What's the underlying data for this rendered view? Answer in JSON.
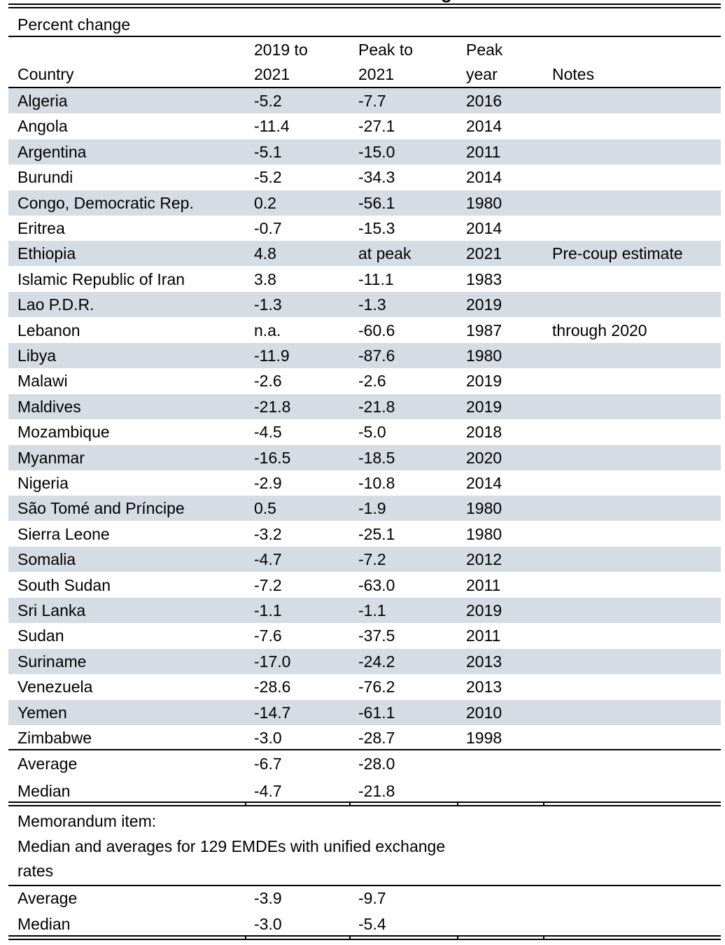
{
  "title_fragment": "g",
  "subtitle": "Percent change",
  "headers": {
    "country": "Country",
    "col1_line1": "2019 to",
    "col1_line2": "2021",
    "col2_line1": "Peak to",
    "col2_line2": "2021",
    "col3_line1": "Peak",
    "col3_line2": "year",
    "notes": "Notes"
  },
  "rows": [
    {
      "country": "Algeria",
      "v1": "-5.2",
      "v2": "-7.7",
      "year": "2016",
      "note": ""
    },
    {
      "country": "Angola",
      "v1": "-11.4",
      "v2": "-27.1",
      "year": "2014",
      "note": ""
    },
    {
      "country": "Argentina",
      "v1": "-5.1",
      "v2": "-15.0",
      "year": "2011",
      "note": ""
    },
    {
      "country": "Burundi",
      "v1": "-5.2",
      "v2": "-34.3",
      "year": "2014",
      "note": ""
    },
    {
      "country": "Congo, Democratic Rep.",
      "v1": "0.2",
      "v2": "-56.1",
      "year": "1980",
      "note": ""
    },
    {
      "country": "Eritrea",
      "v1": "-0.7",
      "v2": "-15.3",
      "year": "2014",
      "note": ""
    },
    {
      "country": "Ethiopia",
      "v1": "4.8",
      "v2": "at peak",
      "year": "2021",
      "note": "Pre-coup estimate"
    },
    {
      "country": "Islamic Republic of Iran",
      "v1": "3.8",
      "v2": "-11.1",
      "year": "1983",
      "note": ""
    },
    {
      "country": "Lao P.D.R.",
      "v1": "-1.3",
      "v2": "-1.3",
      "year": "2019",
      "note": ""
    },
    {
      "country": "Lebanon",
      "v1": "n.a.",
      "v2": "-60.6",
      "year": "1987",
      "note": "through 2020"
    },
    {
      "country": "Libya",
      "v1": "-11.9",
      "v2": "-87.6",
      "year": "1980",
      "note": ""
    },
    {
      "country": "Malawi",
      "v1": "-2.6",
      "v2": "-2.6",
      "year": "2019",
      "note": ""
    },
    {
      "country": "Maldives",
      "v1": "-21.8",
      "v2": "-21.8",
      "year": "2019",
      "note": ""
    },
    {
      "country": "Mozambique",
      "v1": "-4.5",
      "v2": "-5.0",
      "year": "2018",
      "note": ""
    },
    {
      "country": "Myanmar",
      "v1": "-16.5",
      "v2": "-18.5",
      "year": "2020",
      "note": ""
    },
    {
      "country": "Nigeria",
      "v1": "-2.9",
      "v2": "-10.8",
      "year": "2014",
      "note": ""
    },
    {
      "country": "São Tomé and Príncipe",
      "v1": "0.5",
      "v2": "-1.9",
      "year": "1980",
      "note": ""
    },
    {
      "country": "Sierra Leone",
      "v1": "-3.2",
      "v2": "-25.1",
      "year": "1980",
      "note": ""
    },
    {
      "country": "Somalia",
      "v1": "-4.7",
      "v2": "-7.2",
      "year": "2012",
      "note": ""
    },
    {
      "country": "South Sudan",
      "v1": "-7.2",
      "v2": "-63.0",
      "year": "2011",
      "note": ""
    },
    {
      "country": "Sri Lanka",
      "v1": "-1.1",
      "v2": "-1.1",
      "year": "2019",
      "note": ""
    },
    {
      "country": "Sudan",
      "v1": "-7.6",
      "v2": "-37.5",
      "year": "2011",
      "note": ""
    },
    {
      "country": "Suriname",
      "v1": "-17.0",
      "v2": "-24.2",
      "year": "2013",
      "note": ""
    },
    {
      "country": "Venezuela",
      "v1": "-28.6",
      "v2": "-76.2",
      "year": "2013",
      "note": ""
    },
    {
      "country": "Yemen",
      "v1": "-14.7",
      "v2": "-61.1",
      "year": "2010",
      "note": ""
    },
    {
      "country": "Zimbabwe",
      "v1": "-3.0",
      "v2": "-28.7",
      "year": "1998",
      "note": ""
    }
  ],
  "summary": {
    "average_label": "Average",
    "average_v1": "-6.7",
    "average_v2": "-28.0",
    "median_label": "Median",
    "median_v1": "-4.7",
    "median_v2": "-21.8"
  },
  "memo": {
    "line1": "Memorandum item:",
    "line2": "Median and averages for 129 EMDEs  with unified exchange",
    "line3": "rates",
    "average_label": "Average",
    "average_v1": "-3.9",
    "average_v2": "-9.7",
    "median_label": "Median",
    "median_v1": "-3.0",
    "median_v2": "-5.4"
  },
  "colors": {
    "row_shade": "#d6dce4",
    "rule": "#000000"
  }
}
